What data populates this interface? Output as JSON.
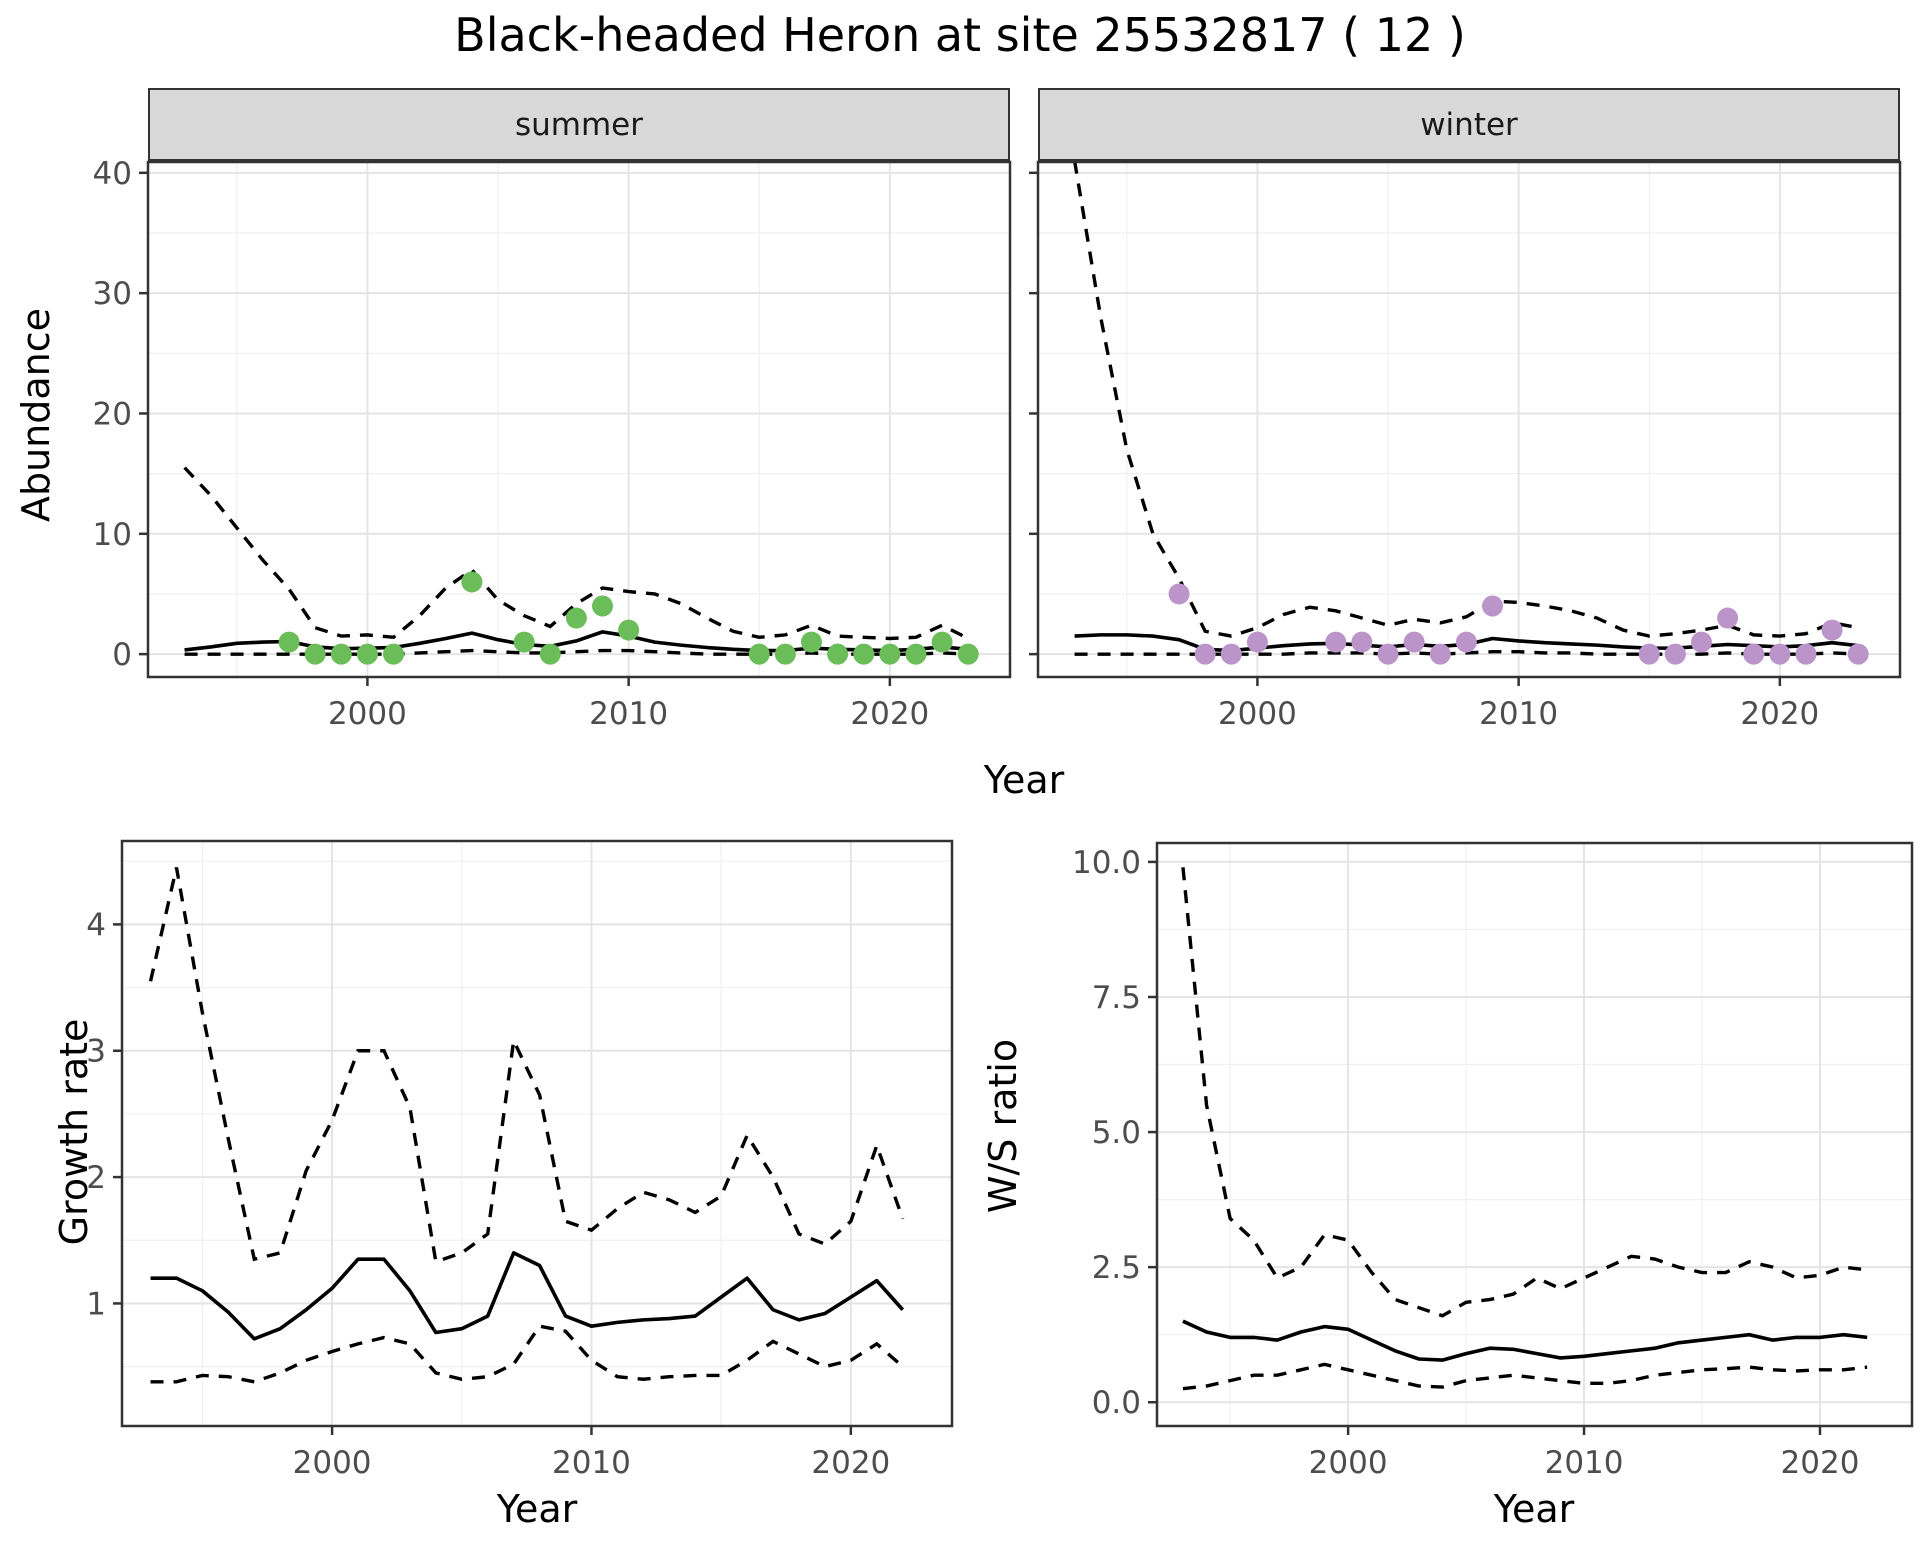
{
  "title": "Black-headed Heron at site 25532817 ( 12 )",
  "top_row": {
    "ylabel": "Abundance",
    "xlabel": "Year",
    "facets": [
      {
        "label": "summer"
      },
      {
        "label": "winter"
      }
    ]
  },
  "bottom_left": {
    "ylabel": "Growth rate",
    "xlabel": "Year"
  },
  "bottom_right": {
    "ylabel": "W/S ratio",
    "xlabel": "Year"
  },
  "colors": {
    "summer_points": "#6abd58",
    "winter_points": "#bb95ca",
    "line": "#000000",
    "grid_major": "#e4e4e4",
    "grid_minor": "#f0f0f0",
    "panel_border": "#333333",
    "tick_mark": "#333333",
    "tick_text": "#4d4d4d",
    "strip_bg": "#d9d9d9"
  },
  "chart_data": [
    {
      "type": "line",
      "facet": "summer",
      "title": "Abundance - summer",
      "xlabel": "Year",
      "ylabel": "Abundance",
      "grid": true,
      "legend": "none",
      "xlim": [
        1991.6,
        2024.6
      ],
      "ylim": [
        -1.9,
        40.9
      ],
      "x_ticks": [
        2000,
        2010,
        2020
      ],
      "x_tick_labels": [
        "2000",
        "2010",
        "2020"
      ],
      "y_ticks": [
        0,
        10,
        20,
        30,
        40
      ],
      "y_tick_labels": [
        "0",
        "10",
        "20",
        "30",
        "40"
      ],
      "x": [
        1993,
        1994,
        1995,
        1996,
        1997,
        1998,
        1999,
        2000,
        2001,
        2002,
        2003,
        2004,
        2005,
        2006,
        2007,
        2008,
        2009,
        2010,
        2011,
        2012,
        2013,
        2014,
        2015,
        2016,
        2017,
        2018,
        2019,
        2020,
        2021,
        2022,
        2023
      ],
      "series": [
        {
          "name": "median_fit",
          "style": "solid",
          "values": [
            0.35,
            0.6,
            0.9,
            1.0,
            1.05,
            0.6,
            0.45,
            0.5,
            0.55,
            0.9,
            1.3,
            1.75,
            1.2,
            0.8,
            0.65,
            1.1,
            1.85,
            1.5,
            1.0,
            0.75,
            0.55,
            0.4,
            0.3,
            0.3,
            0.5,
            0.4,
            0.35,
            0.3,
            0.4,
            0.6,
            0.4
          ]
        },
        {
          "name": "upper_ci",
          "style": "dashed",
          "values": [
            15.5,
            13.2,
            10.5,
            7.8,
            5.4,
            2.2,
            1.5,
            1.6,
            1.4,
            3.2,
            5.5,
            7.0,
            4.5,
            3.2,
            2.3,
            4.2,
            5.5,
            5.2,
            5.0,
            4.2,
            3.0,
            1.9,
            1.4,
            1.6,
            2.4,
            1.5,
            1.4,
            1.3,
            1.4,
            2.4,
            1.3
          ]
        },
        {
          "name": "lower_ci",
          "style": "dashed",
          "values": [
            0,
            0,
            0,
            0,
            0,
            0,
            0,
            0,
            0,
            0.1,
            0.2,
            0.3,
            0.2,
            0.1,
            0.1,
            0.2,
            0.3,
            0.3,
            0.2,
            0.1,
            0,
            0,
            0,
            0,
            0.1,
            0,
            0,
            0,
            0,
            0.1,
            0
          ]
        }
      ],
      "points": {
        "name": "observed_counts",
        "color": "#6abd58",
        "data": [
          [
            1997,
            1
          ],
          [
            1998,
            0
          ],
          [
            1999,
            0
          ],
          [
            2000,
            0
          ],
          [
            2001,
            0
          ],
          [
            2004,
            6
          ],
          [
            2006,
            1
          ],
          [
            2007,
            0
          ],
          [
            2008,
            3
          ],
          [
            2009,
            4
          ],
          [
            2010,
            2
          ],
          [
            2015,
            0
          ],
          [
            2016,
            0
          ],
          [
            2017,
            1
          ],
          [
            2018,
            0
          ],
          [
            2019,
            0
          ],
          [
            2020,
            0
          ],
          [
            2021,
            0
          ],
          [
            2022,
            1
          ],
          [
            2023,
            0
          ]
        ]
      }
    },
    {
      "type": "line",
      "facet": "winter",
      "title": "Abundance - winter",
      "xlabel": "Year",
      "ylabel": "Abundance",
      "grid": true,
      "legend": "none",
      "xlim": [
        1991.6,
        2024.6
      ],
      "ylim": [
        -1.9,
        40.9
      ],
      "x_ticks": [
        2000,
        2010,
        2020
      ],
      "x_tick_labels": [
        "2000",
        "2010",
        "2020"
      ],
      "y_ticks": [
        0,
        10,
        20,
        30,
        40
      ],
      "y_tick_labels": [
        "0",
        "10",
        "20",
        "30",
        "40"
      ],
      "x": [
        1993,
        1994,
        1995,
        1996,
        1997,
        1998,
        1999,
        2000,
        2001,
        2002,
        2003,
        2004,
        2005,
        2006,
        2007,
        2008,
        2009,
        2010,
        2011,
        2012,
        2013,
        2014,
        2015,
        2016,
        2017,
        2018,
        2019,
        2020,
        2021,
        2022,
        2023
      ],
      "series": [
        {
          "name": "median_fit",
          "style": "solid",
          "values": [
            1.5,
            1.6,
            1.6,
            1.5,
            1.2,
            0.4,
            0.3,
            0.5,
            0.7,
            0.85,
            0.9,
            0.75,
            0.6,
            0.8,
            0.65,
            0.8,
            1.3,
            1.1,
            0.95,
            0.85,
            0.75,
            0.6,
            0.5,
            0.5,
            0.65,
            0.8,
            0.7,
            0.6,
            0.7,
            0.95,
            0.7
          ]
        },
        {
          "name": "upper_ci",
          "style": "dashed",
          "values": [
            41,
            28,
            17,
            10,
            6.3,
            1.9,
            1.5,
            2.2,
            3.3,
            3.9,
            3.6,
            3.0,
            2.4,
            2.9,
            2.6,
            3.1,
            4.4,
            4.3,
            4.0,
            3.6,
            3.0,
            2.0,
            1.5,
            1.7,
            2.0,
            2.4,
            1.6,
            1.5,
            1.7,
            2.6,
            2.2
          ]
        },
        {
          "name": "lower_ci",
          "style": "dashed",
          "values": [
            0,
            0,
            0,
            0,
            0,
            0,
            0,
            0,
            0,
            0.1,
            0.1,
            0.1,
            0,
            0.1,
            0,
            0.1,
            0.2,
            0.2,
            0.1,
            0.1,
            0,
            0,
            0,
            0,
            0,
            0.1,
            0,
            0,
            0,
            0.1,
            0
          ]
        }
      ],
      "points": {
        "name": "observed_counts",
        "color": "#bb95ca",
        "data": [
          [
            1997,
            5
          ],
          [
            1998,
            0
          ],
          [
            1999,
            0
          ],
          [
            2000,
            1
          ],
          [
            2003,
            1
          ],
          [
            2004,
            1
          ],
          [
            2005,
            0
          ],
          [
            2006,
            1
          ],
          [
            2007,
            0
          ],
          [
            2008,
            1
          ],
          [
            2009,
            4
          ],
          [
            2015,
            0
          ],
          [
            2016,
            0
          ],
          [
            2017,
            1
          ],
          [
            2018,
            3
          ],
          [
            2019,
            0
          ],
          [
            2020,
            0
          ],
          [
            2021,
            0
          ],
          [
            2022,
            2
          ],
          [
            2023,
            0
          ]
        ]
      }
    },
    {
      "type": "line",
      "facet": null,
      "title": "Growth rate",
      "xlabel": "Year",
      "ylabel": "Growth rate",
      "grid": true,
      "legend": "none",
      "xlim": [
        1991.9,
        2023.9
      ],
      "ylim": [
        0.03,
        4.66
      ],
      "x_ticks": [
        2000,
        2010,
        2020
      ],
      "x_tick_labels": [
        "2000",
        "2010",
        "2020"
      ],
      "y_ticks": [
        1,
        2,
        3,
        4
      ],
      "y_tick_labels": [
        "1",
        "2",
        "3",
        "4"
      ],
      "x": [
        1993,
        1994,
        1995,
        1996,
        1997,
        1998,
        1999,
        2000,
        2001,
        2002,
        2003,
        2004,
        2005,
        2006,
        2007,
        2008,
        2009,
        2010,
        2011,
        2012,
        2013,
        2014,
        2015,
        2016,
        2017,
        2018,
        2019,
        2020,
        2021,
        2022
      ],
      "series": [
        {
          "name": "median_growth",
          "style": "solid",
          "values": [
            1.2,
            1.2,
            1.1,
            0.93,
            0.72,
            0.8,
            0.95,
            1.12,
            1.35,
            1.35,
            1.1,
            0.77,
            0.8,
            0.9,
            1.4,
            1.3,
            0.9,
            0.82,
            0.85,
            0.87,
            0.88,
            0.9,
            1.05,
            1.2,
            0.95,
            0.87,
            0.92,
            1.05,
            1.18,
            0.95
          ]
        },
        {
          "name": "upper_ci",
          "style": "dashed",
          "values": [
            3.55,
            4.45,
            3.3,
            2.3,
            1.35,
            1.4,
            2.05,
            2.45,
            3.0,
            3.0,
            2.55,
            1.33,
            1.4,
            1.55,
            3.08,
            2.65,
            1.65,
            1.58,
            1.75,
            1.88,
            1.82,
            1.72,
            1.85,
            2.33,
            2.0,
            1.55,
            1.47,
            1.65,
            2.25,
            1.67
          ]
        },
        {
          "name": "lower_ci",
          "style": "dashed",
          "values": [
            0.38,
            0.38,
            0.43,
            0.42,
            0.38,
            0.45,
            0.55,
            0.62,
            0.68,
            0.73,
            0.68,
            0.45,
            0.4,
            0.42,
            0.52,
            0.82,
            0.78,
            0.55,
            0.42,
            0.4,
            0.42,
            0.43,
            0.43,
            0.55,
            0.7,
            0.6,
            0.5,
            0.55,
            0.68,
            0.5
          ]
        }
      ],
      "points": null
    },
    {
      "type": "line",
      "facet": null,
      "title": "W/S ratio",
      "xlabel": "Year",
      "ylabel": "W/S ratio",
      "grid": true,
      "legend": "none",
      "xlim": [
        1991.9,
        2023.9
      ],
      "ylim": [
        -0.44,
        10.35
      ],
      "x_ticks": [
        2000,
        2010,
        2020
      ],
      "x_tick_labels": [
        "2000",
        "2010",
        "2020"
      ],
      "y_ticks": [
        0,
        2.5,
        5,
        7.5,
        10
      ],
      "y_tick_labels": [
        "0.0",
        "2.5",
        "5.0",
        "7.5",
        "10.0"
      ],
      "x": [
        1993,
        1994,
        1995,
        1996,
        1997,
        1998,
        1999,
        2000,
        2001,
        2002,
        2003,
        2004,
        2005,
        2006,
        2007,
        2008,
        2009,
        2010,
        2011,
        2012,
        2013,
        2014,
        2015,
        2016,
        2017,
        2018,
        2019,
        2020,
        2021,
        2022
      ],
      "series": [
        {
          "name": "median_ratio",
          "style": "solid",
          "values": [
            1.5,
            1.3,
            1.2,
            1.2,
            1.15,
            1.3,
            1.4,
            1.35,
            1.15,
            0.95,
            0.8,
            0.78,
            0.9,
            1.0,
            0.98,
            0.9,
            0.82,
            0.85,
            0.9,
            0.95,
            1.0,
            1.1,
            1.15,
            1.2,
            1.25,
            1.15,
            1.2,
            1.2,
            1.25,
            1.2
          ]
        },
        {
          "name": "upper_ci",
          "style": "dashed",
          "values": [
            9.9,
            5.5,
            3.4,
            3.0,
            2.3,
            2.5,
            3.1,
            3.0,
            2.4,
            1.9,
            1.75,
            1.6,
            1.85,
            1.9,
            2.0,
            2.3,
            2.1,
            2.3,
            2.5,
            2.7,
            2.65,
            2.5,
            2.4,
            2.4,
            2.6,
            2.5,
            2.3,
            2.35,
            2.5,
            2.45
          ]
        },
        {
          "name": "lower_ci",
          "style": "dashed",
          "values": [
            0.25,
            0.3,
            0.4,
            0.5,
            0.5,
            0.6,
            0.7,
            0.6,
            0.5,
            0.4,
            0.3,
            0.28,
            0.4,
            0.45,
            0.5,
            0.45,
            0.4,
            0.35,
            0.35,
            0.4,
            0.5,
            0.55,
            0.6,
            0.62,
            0.65,
            0.6,
            0.58,
            0.6,
            0.6,
            0.65
          ]
        }
      ],
      "points": null
    }
  ]
}
